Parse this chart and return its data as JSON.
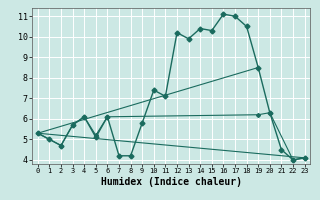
{
  "xlabel": "Humidex (Indice chaleur)",
  "bg_color": "#cce8e4",
  "grid_color": "#ffffff",
  "line_color": "#1a6b5e",
  "line1_x": [
    0,
    1,
    2,
    3,
    4,
    5,
    6,
    7,
    8,
    9,
    10,
    11,
    12,
    13,
    14,
    15,
    16,
    17,
    18,
    19,
    20,
    21,
    22,
    23
  ],
  "line1_y": [
    5.3,
    5.0,
    4.7,
    5.7,
    6.1,
    5.1,
    6.1,
    4.2,
    4.2,
    5.8,
    7.4,
    7.1,
    10.2,
    9.9,
    10.4,
    10.3,
    11.1,
    11.0,
    10.5,
    8.5,
    6.3,
    4.5,
    4.0,
    4.1
  ],
  "line2_x": [
    0,
    2,
    3,
    4,
    5,
    6,
    19,
    20,
    22,
    23
  ],
  "line2_y": [
    5.3,
    4.7,
    5.7,
    6.1,
    5.2,
    6.1,
    6.2,
    6.3,
    4.0,
    4.1
  ],
  "line3_x": [
    0,
    23
  ],
  "line3_y": [
    5.3,
    4.1
  ],
  "line4_x": [
    0,
    19
  ],
  "line4_y": [
    5.3,
    8.5
  ],
  "xlim": [
    -0.5,
    23.5
  ],
  "ylim": [
    3.8,
    11.4
  ],
  "yticks": [
    4,
    5,
    6,
    7,
    8,
    9,
    10,
    11
  ],
  "xticks": [
    0,
    1,
    2,
    3,
    4,
    5,
    6,
    7,
    8,
    9,
    10,
    11,
    12,
    13,
    14,
    15,
    16,
    17,
    18,
    19,
    20,
    21,
    22,
    23
  ]
}
